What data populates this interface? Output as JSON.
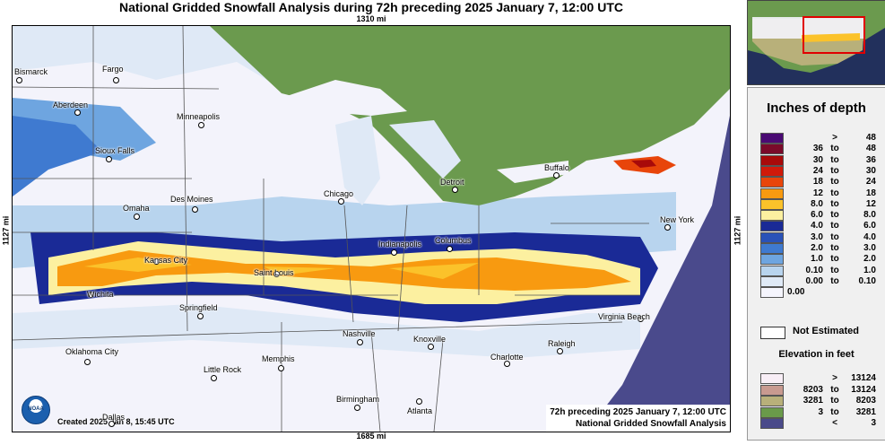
{
  "title": "National Gridded Snowfall Analysis during 72h preceding 2025 January 7, 12:00 UTC",
  "dimensions": {
    "top": "1310 mi",
    "bottom": "1685 mi",
    "left": "1127 mi",
    "right": "1127 mi"
  },
  "cities": [
    {
      "name": "Bismarck"
    },
    {
      "name": "Fargo"
    },
    {
      "name": "Aberdeen"
    },
    {
      "name": "Minneapolis"
    },
    {
      "name": "Sioux Falls"
    },
    {
      "name": "Des Moines"
    },
    {
      "name": "Omaha"
    },
    {
      "name": "Chicago"
    },
    {
      "name": "Detroit"
    },
    {
      "name": "Buffalo"
    },
    {
      "name": "Kansas City"
    },
    {
      "name": "Indianapolis"
    },
    {
      "name": "Columbus"
    },
    {
      "name": "New York"
    },
    {
      "name": "Wichita"
    },
    {
      "name": "Saint Louis"
    },
    {
      "name": "Springfield"
    },
    {
      "name": "Virginia Beach"
    },
    {
      "name": "Oklahoma City"
    },
    {
      "name": "Nashville"
    },
    {
      "name": "Knoxville"
    },
    {
      "name": "Raleigh"
    },
    {
      "name": "Memphis"
    },
    {
      "name": "Little Rock"
    },
    {
      "name": "Charlotte"
    },
    {
      "name": "Birmingham"
    },
    {
      "name": "Atlanta"
    },
    {
      "name": "Dallas"
    }
  ],
  "created": "Created 2025 Jan 8, 15:45 UTC",
  "noaa_logo_text": "NOAA",
  "caption_line1": "72h preceding 2025 January 7, 12:00 UTC",
  "caption_line2": "National Gridded Snowfall Analysis",
  "legend": {
    "title": "Inches of depth",
    "items": [
      {
        "a": ">",
        "to": "",
        "b": "48",
        "color": "#4a0a73"
      },
      {
        "a": "36",
        "to": "to",
        "b": "48",
        "color": "#7a0a2a"
      },
      {
        "a": "30",
        "to": "to",
        "b": "36",
        "color": "#a80a0a"
      },
      {
        "a": "24",
        "to": "to",
        "b": "30",
        "color": "#d01a0a"
      },
      {
        "a": "18",
        "to": "to",
        "b": "24",
        "color": "#e8450a"
      },
      {
        "a": "12",
        "to": "to",
        "b": "18",
        "color": "#f89a10"
      },
      {
        "a": "8.0",
        "to": "to",
        "b": "12",
        "color": "#fbc22a"
      },
      {
        "a": "6.0",
        "to": "to",
        "b": "8.0",
        "color": "#fcf0a0"
      },
      {
        "a": "4.0",
        "to": "to",
        "b": "6.0",
        "color": "#1a2a96"
      },
      {
        "a": "3.0",
        "to": "to",
        "b": "4.0",
        "color": "#2a52b8"
      },
      {
        "a": "2.0",
        "to": "to",
        "b": "3.0",
        "color": "#3f7ad0"
      },
      {
        "a": "1.0",
        "to": "to",
        "b": "2.0",
        "color": "#6ea5e0"
      },
      {
        "a": "0.10",
        "to": "to",
        "b": "1.0",
        "color": "#b8d4ee"
      },
      {
        "a": "0.00",
        "to": "to",
        "b": "0.10",
        "color": "#dfe9f6"
      },
      {
        "a": "0.00",
        "to": "",
        "b": "",
        "color": "#f5f5fd"
      }
    ],
    "not_estimated": "Not Estimated",
    "elevation_title": "Elevation in feet",
    "elevation_items": [
      {
        "a": ">",
        "to": "",
        "b": "13124",
        "color": "#f8eef6"
      },
      {
        "a": "8203",
        "to": "to",
        "b": "13124",
        "color": "#c89a90"
      },
      {
        "a": "3281",
        "to": "to",
        "b": "8203",
        "color": "#b8b07a"
      },
      {
        "a": "3",
        "to": "to",
        "b": "3281",
        "color": "#6a9a4a"
      },
      {
        "a": "<",
        "to": "",
        "b": "3",
        "color": "#4a4a8a"
      }
    ]
  },
  "colors": {
    "land": "#6b9a4e",
    "water": "#4a4a8c",
    "no_snow": "#f3f3fb"
  }
}
